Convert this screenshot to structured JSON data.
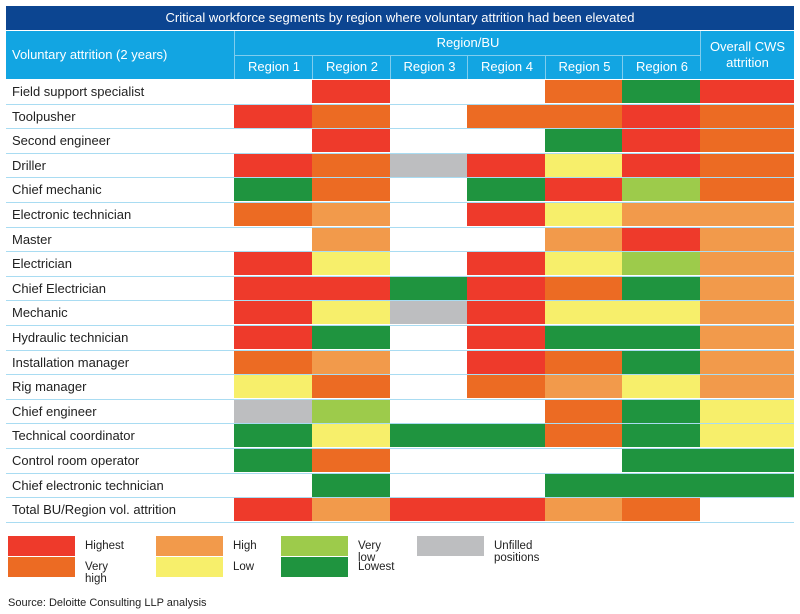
{
  "chart_data": {
    "type": "heatmap",
    "title": "Critical workforce segments by region where voluntary attrition had been elevated",
    "row_header": "Voluntary attrition (2 years)",
    "group_header": "Region/BU",
    "columns": [
      "Region 1",
      "Region 2",
      "Region 3",
      "Region 4",
      "Region 5",
      "Region 6"
    ],
    "overall_header": "Overall CWS attrition",
    "levels": {
      "H": {
        "label": "Highest",
        "color": "#ee3a2b"
      },
      "VH": {
        "label": "Very high",
        "color": "#ec6b23"
      },
      "Hi": {
        "label": "High",
        "color": "#f29a4b"
      },
      "L": {
        "label": "Low",
        "color": "#f7ef6b"
      },
      "VL": {
        "label": "Very low",
        "color": "#9dcb4b"
      },
      "LW": {
        "label": "Lowest",
        "color": "#1f943f"
      },
      "U": {
        "label": "Unfilled positions",
        "color": "#bdbec0"
      }
    },
    "legend_order": [
      [
        "H",
        "VH"
      ],
      [
        "Hi",
        "L"
      ],
      [
        "VL",
        "LW"
      ],
      [
        "U"
      ]
    ],
    "rows": [
      {
        "label": "Field support specialist",
        "values": [
          "",
          "H",
          "",
          "",
          "VH",
          "LW",
          "H"
        ]
      },
      {
        "label": "Toolpusher",
        "values": [
          "H",
          "VH",
          "",
          "VH",
          "VH",
          "H",
          "VH"
        ]
      },
      {
        "label": "Second engineer",
        "values": [
          "",
          "H",
          "",
          "",
          "LW",
          "H",
          "VH"
        ]
      },
      {
        "label": "Driller",
        "values": [
          "H",
          "VH",
          "U",
          "H",
          "L",
          "H",
          "VH"
        ]
      },
      {
        "label": "Chief mechanic",
        "values": [
          "LW",
          "VH",
          "",
          "LW",
          "H",
          "VL",
          "VH"
        ]
      },
      {
        "label": "Electronic technician",
        "values": [
          "VH",
          "Hi",
          "",
          "H",
          "L",
          "Hi",
          "Hi"
        ]
      },
      {
        "label": "Master",
        "values": [
          "",
          "Hi",
          "",
          "",
          "Hi",
          "H",
          "Hi"
        ]
      },
      {
        "label": "Electrician",
        "values": [
          "H",
          "L",
          "",
          "H",
          "L",
          "VL",
          "Hi"
        ]
      },
      {
        "label": "Chief Electrician",
        "values": [
          "H",
          "H",
          "LW",
          "H",
          "VH",
          "LW",
          "Hi"
        ]
      },
      {
        "label": "Mechanic",
        "values": [
          "H",
          "L",
          "U",
          "H",
          "L",
          "L",
          "Hi"
        ]
      },
      {
        "label": "Hydraulic technician",
        "values": [
          "H",
          "LW",
          "",
          "H",
          "LW",
          "LW",
          "Hi"
        ]
      },
      {
        "label": "Installation manager",
        "values": [
          "VH",
          "Hi",
          "",
          "H",
          "VH",
          "LW",
          "Hi"
        ]
      },
      {
        "label": "Rig manager",
        "values": [
          "L",
          "VH",
          "",
          "VH",
          "Hi",
          "L",
          "Hi"
        ]
      },
      {
        "label": "Chief engineer",
        "values": [
          "U",
          "VL",
          "",
          "",
          "VH",
          "LW",
          "L"
        ]
      },
      {
        "label": "Technical coordinator",
        "values": [
          "LW",
          "L",
          "LW",
          "LW",
          "VH",
          "LW",
          "L"
        ]
      },
      {
        "label": "Control room operator",
        "values": [
          "LW",
          "VH",
          "",
          "",
          "",
          "LW",
          "LW"
        ]
      },
      {
        "label": "Chief electronic technician",
        "values": [
          "",
          "LW",
          "",
          "",
          "LW",
          "LW",
          "LW"
        ]
      },
      {
        "label": "Total BU/Region vol. attrition",
        "values": [
          "H",
          "Hi",
          "H",
          "H",
          "Hi",
          "VH",
          ""
        ]
      }
    ]
  },
  "source": "Source: Deloitte Consulting LLP analysis"
}
